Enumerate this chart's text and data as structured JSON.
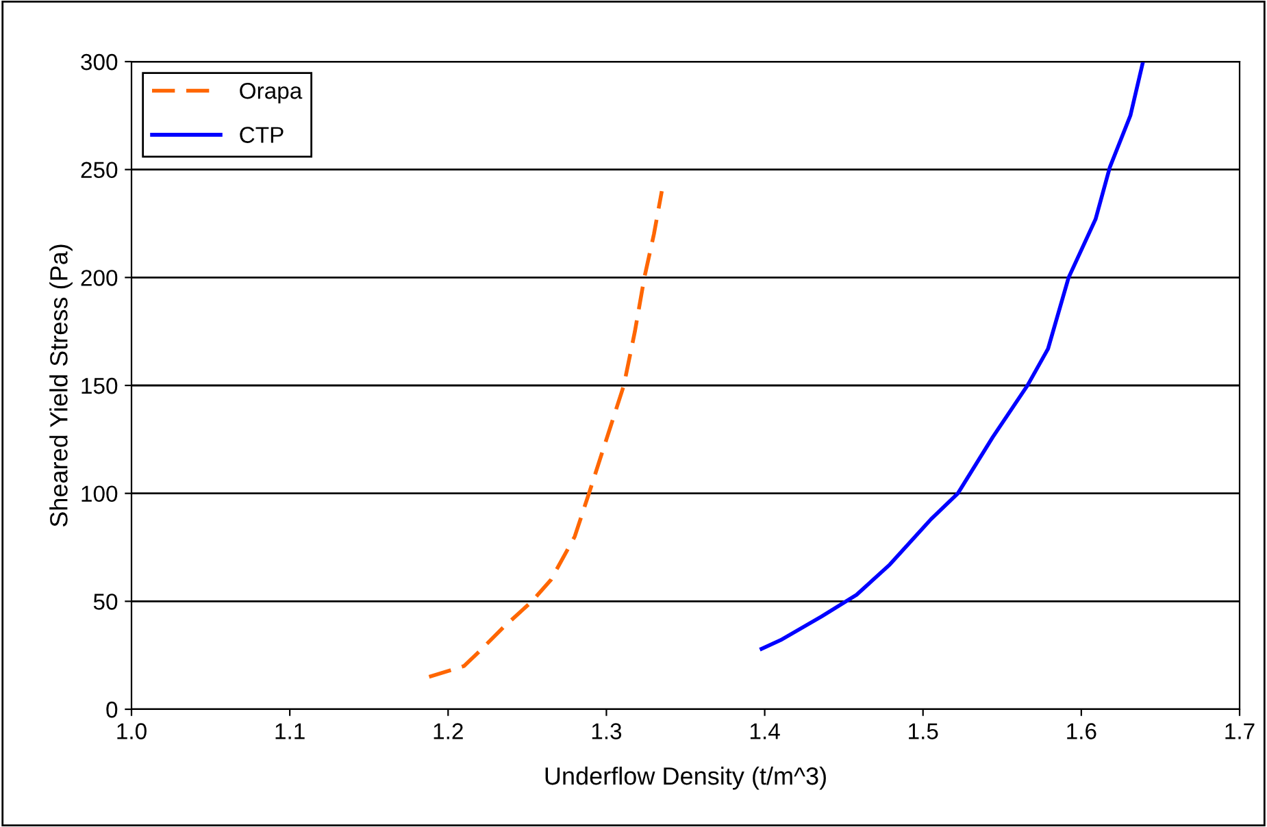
{
  "chart_data": {
    "type": "line",
    "xlabel": "Underflow Density (t/m^3)",
    "ylabel": "Sheared Yield Stress (Pa)",
    "xlim": [
      1.0,
      1.7
    ],
    "xticks": [
      {
        "value": 1.0,
        "label": "1.0"
      },
      1.1,
      1.2,
      1.3,
      1.4,
      1.5,
      1.6,
      1.7
    ],
    "ylim": [
      0,
      300
    ],
    "yticks": [
      0,
      50,
      100,
      150,
      200,
      250,
      300
    ],
    "grid": "y",
    "legend": "top left",
    "marker": "none",
    "series": [
      {
        "name": "Orapa",
        "color": "#ff6600",
        "line_style": "dashed",
        "x": [
          1.188,
          1.21,
          1.22,
          1.235,
          1.253,
          1.265,
          1.28,
          1.289,
          1.3,
          1.311,
          1.318,
          1.324,
          1.33,
          1.335
        ],
        "values": [
          15,
          20,
          27,
          38,
          50,
          60,
          80,
          100,
          125,
          150,
          175,
          200,
          220,
          240
        ]
      },
      {
        "name": "CTP",
        "color": "#0000ff",
        "line_style": "solid",
        "x": [
          1.398,
          1.41,
          1.436,
          1.458,
          1.479,
          1.505,
          1.522,
          1.544,
          1.566,
          1.579,
          1.592,
          1.609,
          1.618,
          1.631,
          1.639
        ],
        "values": [
          28,
          32,
          43,
          53,
          67,
          88,
          100,
          126,
          150,
          167,
          200,
          227,
          251,
          275,
          300
        ]
      }
    ]
  }
}
